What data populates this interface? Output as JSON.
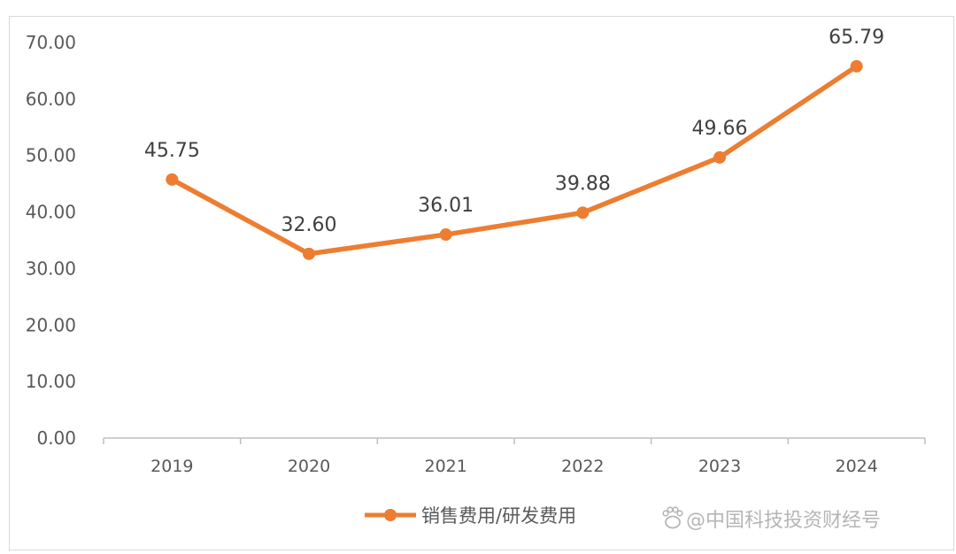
{
  "chart_data": {
    "type": "line",
    "categories": [
      "2019",
      "2020",
      "2021",
      "2022",
      "2023",
      "2024"
    ],
    "series": [
      {
        "name": "销售费用/研发费用",
        "values": [
          45.75,
          32.6,
          36.01,
          39.88,
          49.66,
          65.79
        ],
        "labels": [
          "45.75",
          "32.60",
          "36.01",
          "39.88",
          "49.66",
          "65.79"
        ],
        "color": "#ED7D31"
      }
    ],
    "y_ticks": [
      "0.00",
      "10.00",
      "20.00",
      "30.00",
      "40.00",
      "50.00",
      "60.00",
      "70.00"
    ],
    "ylim": [
      0,
      70
    ],
    "title": "",
    "xlabel": "",
    "ylabel": "",
    "grid": false,
    "legend_position": "bottom"
  },
  "watermark": {
    "icon": "paw-icon",
    "text": "@中国科技投资财经号"
  }
}
